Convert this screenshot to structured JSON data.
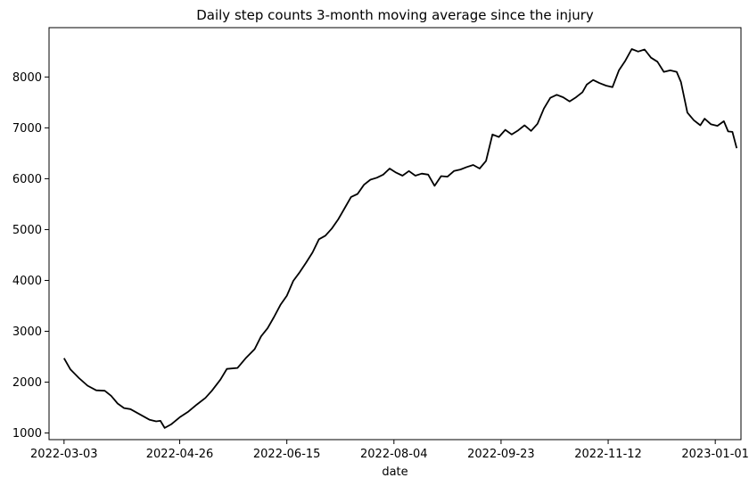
{
  "chart_data": {
    "type": "line",
    "title": "Daily step counts 3-month moving average since the injury",
    "xlabel": "date",
    "ylabel": "",
    "grid": false,
    "legend": "none",
    "line_color": "#000000",
    "x_axis": {
      "type": "date",
      "range": [
        "2022-02-24",
        "2023-01-13"
      ],
      "ticks": [
        "2022-03-03",
        "2022-04-26",
        "2022-06-15",
        "2022-08-04",
        "2022-09-23",
        "2022-11-12",
        "2023-01-01"
      ]
    },
    "y_axis": {
      "range": [
        870,
        8970
      ],
      "ticks": [
        1000,
        2000,
        3000,
        4000,
        5000,
        6000,
        7000,
        8000
      ]
    },
    "series": [
      {
        "name": "",
        "points": [
          [
            "2022-03-03",
            2470
          ],
          [
            "2022-03-06",
            2250
          ],
          [
            "2022-03-10",
            2080
          ],
          [
            "2022-03-14",
            1930
          ],
          [
            "2022-03-18",
            1840
          ],
          [
            "2022-03-22",
            1830
          ],
          [
            "2022-03-25",
            1730
          ],
          [
            "2022-03-28",
            1580
          ],
          [
            "2022-03-31",
            1490
          ],
          [
            "2022-04-03",
            1470
          ],
          [
            "2022-04-06",
            1400
          ],
          [
            "2022-04-09",
            1330
          ],
          [
            "2022-04-12",
            1260
          ],
          [
            "2022-04-15",
            1230
          ],
          [
            "2022-04-17",
            1240
          ],
          [
            "2022-04-19",
            1100
          ],
          [
            "2022-04-22",
            1170
          ],
          [
            "2022-04-26",
            1310
          ],
          [
            "2022-04-30",
            1420
          ],
          [
            "2022-05-04",
            1560
          ],
          [
            "2022-05-08",
            1690
          ],
          [
            "2022-05-11",
            1830
          ],
          [
            "2022-05-15",
            2050
          ],
          [
            "2022-05-18",
            2260
          ],
          [
            "2022-05-23",
            2280
          ],
          [
            "2022-05-27",
            2480
          ],
          [
            "2022-05-31",
            2650
          ],
          [
            "2022-06-03",
            2900
          ],
          [
            "2022-06-06",
            3060
          ],
          [
            "2022-06-09",
            3280
          ],
          [
            "2022-06-12",
            3520
          ],
          [
            "2022-06-15",
            3700
          ],
          [
            "2022-06-18",
            3990
          ],
          [
            "2022-06-21",
            4160
          ],
          [
            "2022-06-24",
            4350
          ],
          [
            "2022-06-27",
            4550
          ],
          [
            "2022-06-30",
            4810
          ],
          [
            "2022-07-03",
            4880
          ],
          [
            "2022-07-06",
            5020
          ],
          [
            "2022-07-09",
            5200
          ],
          [
            "2022-07-12",
            5420
          ],
          [
            "2022-07-15",
            5640
          ],
          [
            "2022-07-18",
            5700
          ],
          [
            "2022-07-21",
            5880
          ],
          [
            "2022-07-24",
            5980
          ],
          [
            "2022-07-27",
            6020
          ],
          [
            "2022-07-30",
            6080
          ],
          [
            "2022-08-02",
            6200
          ],
          [
            "2022-08-05",
            6120
          ],
          [
            "2022-08-08",
            6060
          ],
          [
            "2022-08-11",
            6150
          ],
          [
            "2022-08-14",
            6060
          ],
          [
            "2022-08-17",
            6100
          ],
          [
            "2022-08-20",
            6080
          ],
          [
            "2022-08-23",
            5860
          ],
          [
            "2022-08-26",
            6050
          ],
          [
            "2022-08-29",
            6040
          ],
          [
            "2022-09-01",
            6150
          ],
          [
            "2022-09-04",
            6180
          ],
          [
            "2022-09-07",
            6230
          ],
          [
            "2022-09-10",
            6270
          ],
          [
            "2022-09-13",
            6200
          ],
          [
            "2022-09-16",
            6350
          ],
          [
            "2022-09-19",
            6870
          ],
          [
            "2022-09-22",
            6820
          ],
          [
            "2022-09-25",
            6960
          ],
          [
            "2022-09-28",
            6870
          ],
          [
            "2022-10-01",
            6950
          ],
          [
            "2022-10-04",
            7050
          ],
          [
            "2022-10-07",
            6940
          ],
          [
            "2022-10-10",
            7080
          ],
          [
            "2022-10-13",
            7380
          ],
          [
            "2022-10-16",
            7590
          ],
          [
            "2022-10-19",
            7650
          ],
          [
            "2022-10-22",
            7600
          ],
          [
            "2022-10-25",
            7520
          ],
          [
            "2022-10-28",
            7600
          ],
          [
            "2022-10-31",
            7700
          ],
          [
            "2022-11-02",
            7850
          ],
          [
            "2022-11-05",
            7940
          ],
          [
            "2022-11-08",
            7880
          ],
          [
            "2022-11-11",
            7830
          ],
          [
            "2022-11-14",
            7800
          ],
          [
            "2022-11-17",
            8130
          ],
          [
            "2022-11-20",
            8320
          ],
          [
            "2022-11-23",
            8550
          ],
          [
            "2022-11-26",
            8500
          ],
          [
            "2022-11-29",
            8540
          ],
          [
            "2022-12-02",
            8380
          ],
          [
            "2022-12-05",
            8300
          ],
          [
            "2022-12-08",
            8100
          ],
          [
            "2022-12-11",
            8130
          ],
          [
            "2022-12-14",
            8100
          ],
          [
            "2022-12-16",
            7900
          ],
          [
            "2022-12-19",
            7300
          ],
          [
            "2022-12-22",
            7150
          ],
          [
            "2022-12-25",
            7050
          ],
          [
            "2022-12-27",
            7180
          ],
          [
            "2022-12-30",
            7070
          ],
          [
            "2023-01-02",
            7040
          ],
          [
            "2023-01-05",
            7130
          ],
          [
            "2023-01-07",
            6930
          ],
          [
            "2023-01-09",
            6920
          ],
          [
            "2023-01-11",
            6600
          ]
        ]
      }
    ]
  }
}
